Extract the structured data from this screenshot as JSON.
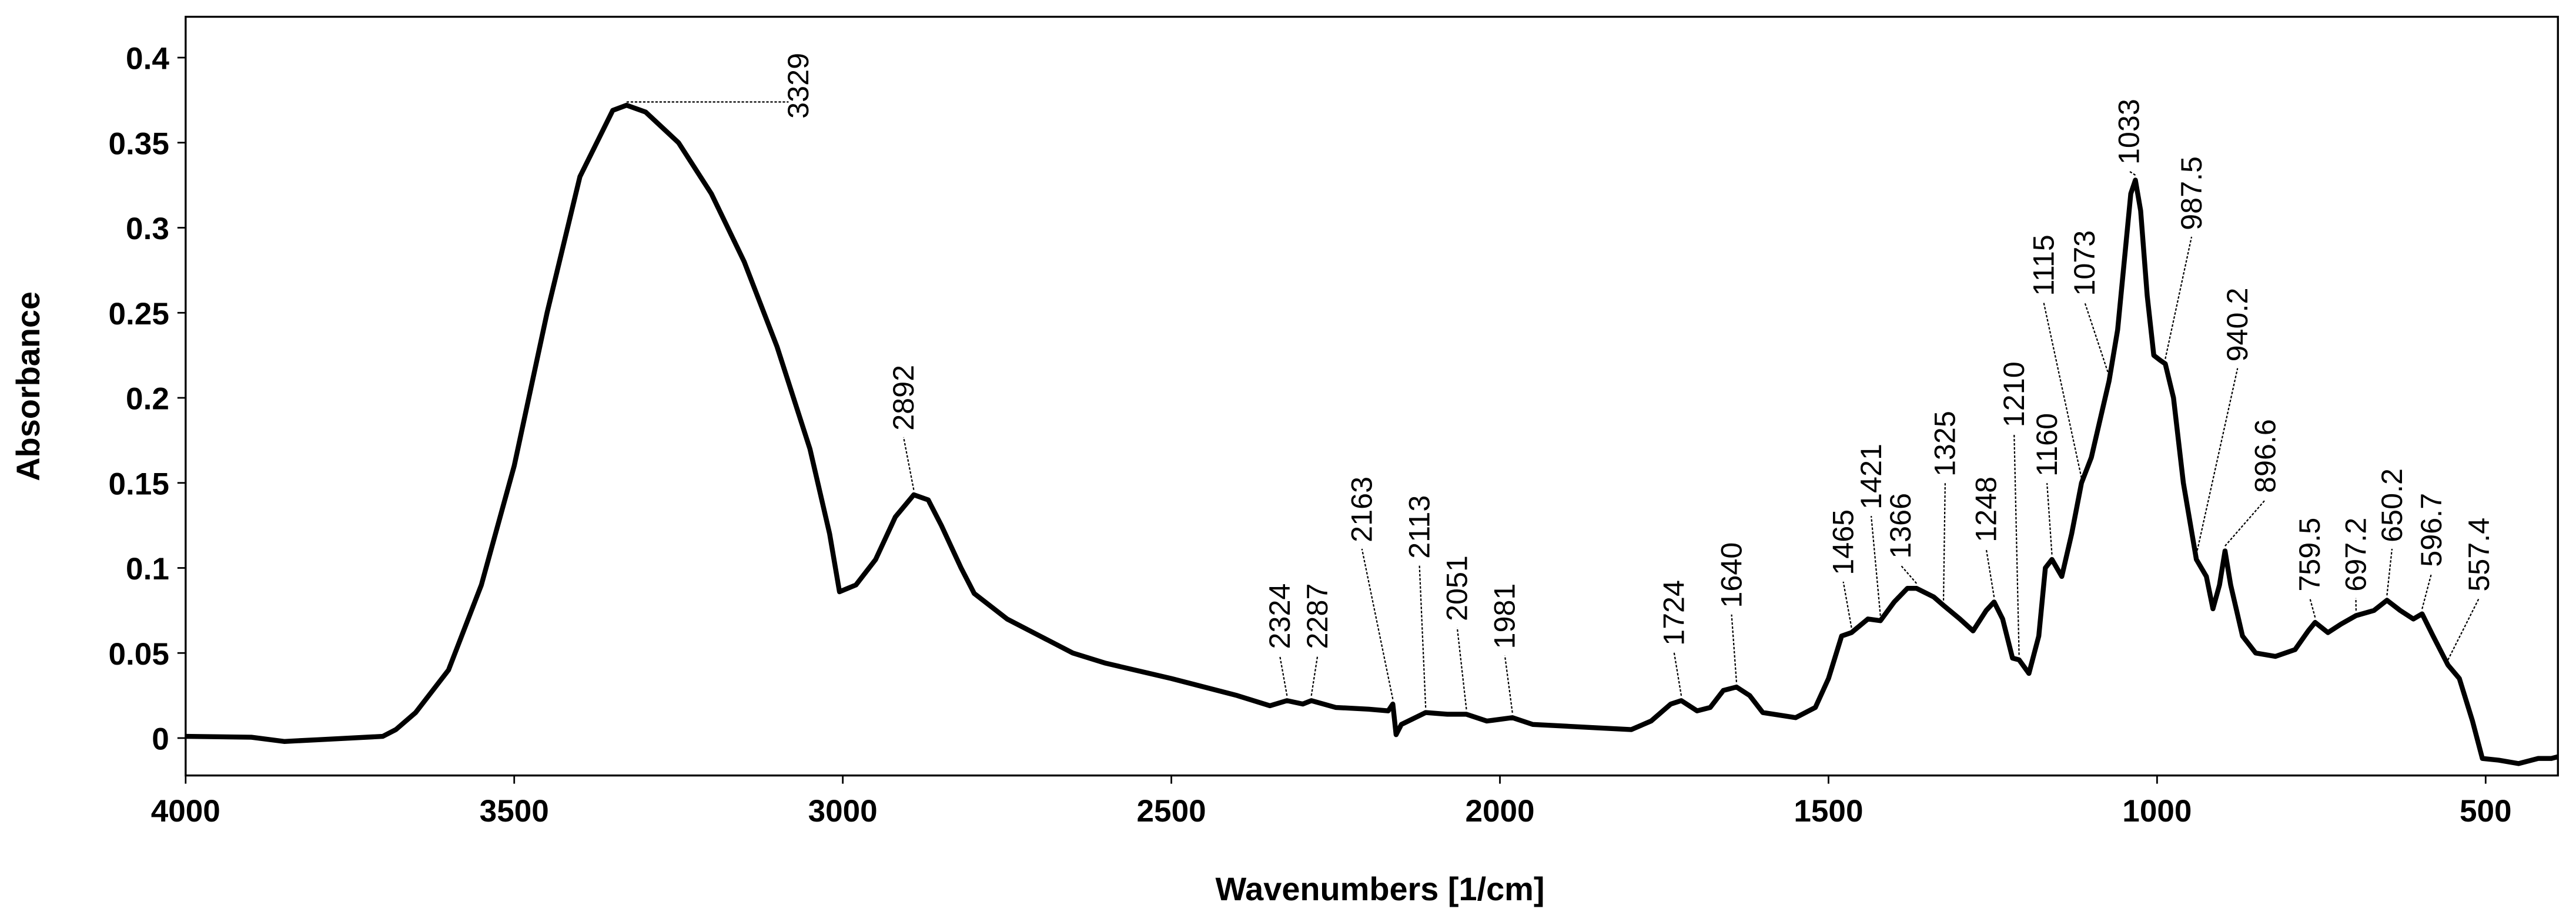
{
  "chart_data": {
    "type": "line",
    "x_label": "Wavenumbers [1/cm]",
    "y_label": "Absorbance",
    "xlim": [
      4000,
      390
    ],
    "ylim": [
      -0.022,
      0.424
    ],
    "xticks": [
      4000,
      3500,
      3000,
      2500,
      2000,
      1500,
      1000,
      500
    ],
    "yticks": [
      0,
      0.05,
      0.1,
      0.15,
      0.2,
      0.25,
      0.3,
      0.35,
      0.4
    ],
    "grid": true,
    "color": "#000000",
    "x": [
      4000,
      3900,
      3850,
      3800,
      3700,
      3680,
      3650,
      3600,
      3550,
      3500,
      3450,
      3400,
      3350,
      3329,
      3300,
      3250,
      3200,
      3150,
      3100,
      3050,
      3020,
      3005,
      2980,
      2950,
      2920,
      2892,
      2870,
      2850,
      2820,
      2800,
      2750,
      2700,
      2650,
      2600,
      2500,
      2400,
      2350,
      2324,
      2300,
      2287,
      2250,
      2200,
      2170,
      2163,
      2158,
      2150,
      2113,
      2080,
      2051,
      2020,
      1981,
      1950,
      1900,
      1850,
      1800,
      1770,
      1740,
      1724,
      1700,
      1680,
      1660,
      1640,
      1620,
      1600,
      1550,
      1520,
      1500,
      1480,
      1465,
      1440,
      1421,
      1400,
      1380,
      1366,
      1340,
      1325,
      1300,
      1280,
      1260,
      1248,
      1235,
      1220,
      1210,
      1195,
      1180,
      1170,
      1160,
      1145,
      1130,
      1115,
      1100,
      1073,
      1060,
      1050,
      1040,
      1033,
      1025,
      1015,
      1005,
      995,
      987.5,
      975,
      960,
      940.2,
      925,
      915,
      905,
      896.6,
      888,
      870,
      850,
      820,
      790,
      770,
      759.5,
      740,
      720,
      697.2,
      670,
      650.2,
      630,
      610,
      596.7,
      580,
      557.4,
      540,
      520,
      505,
      480,
      450,
      420,
      400,
      390
    ],
    "values": [
      0.001,
      0.0005,
      -0.002,
      -0.001,
      0.001,
      0.005,
      0.015,
      0.04,
      0.09,
      0.16,
      0.25,
      0.33,
      0.369,
      0.372,
      0.368,
      0.35,
      0.32,
      0.28,
      0.23,
      0.17,
      0.12,
      0.086,
      0.09,
      0.105,
      0.13,
      0.143,
      0.14,
      0.125,
      0.1,
      0.085,
      0.07,
      0.06,
      0.05,
      0.044,
      0.035,
      0.025,
      0.019,
      0.022,
      0.02,
      0.022,
      0.018,
      0.017,
      0.016,
      0.02,
      0.002,
      0.008,
      0.015,
      0.014,
      0.014,
      0.01,
      0.012,
      0.008,
      0.007,
      0.006,
      0.005,
      0.01,
      0.02,
      0.022,
      0.016,
      0.018,
      0.028,
      0.03,
      0.025,
      0.015,
      0.012,
      0.018,
      0.035,
      0.06,
      0.062,
      0.07,
      0.069,
      0.08,
      0.088,
      0.088,
      0.083,
      0.078,
      0.07,
      0.063,
      0.075,
      0.08,
      0.07,
      0.047,
      0.046,
      0.038,
      0.06,
      0.1,
      0.105,
      0.095,
      0.12,
      0.15,
      0.165,
      0.21,
      0.24,
      0.28,
      0.32,
      0.328,
      0.31,
      0.26,
      0.225,
      0.222,
      0.22,
      0.2,
      0.15,
      0.105,
      0.095,
      0.076,
      0.09,
      0.11,
      0.09,
      0.06,
      0.05,
      0.048,
      0.052,
      0.063,
      0.068,
      0.062,
      0.067,
      0.072,
      0.075,
      0.081,
      0.075,
      0.07,
      0.073,
      0.06,
      0.043,
      0.035,
      0.01,
      -0.012,
      -0.013,
      -0.015,
      -0.012,
      -0.012,
      -0.011
    ],
    "annotations": [
      {
        "x": 3329,
        "y": 0.372
      },
      {
        "x": 2892,
        "y": 0.143
      },
      {
        "x": 2324,
        "y": 0.022
      },
      {
        "x": 2287,
        "y": 0.022
      },
      {
        "x": 2163,
        "y": 0.02
      },
      {
        "x": 2113,
        "y": 0.015
      },
      {
        "x": 2051,
        "y": 0.014
      },
      {
        "x": 1981,
        "y": 0.012
      },
      {
        "x": 1724,
        "y": 0.022
      },
      {
        "x": 1640,
        "y": 0.03
      },
      {
        "x": 1465,
        "y": 0.062
      },
      {
        "x": 1421,
        "y": 0.069
      },
      {
        "x": 1366,
        "y": 0.088
      },
      {
        "x": 1325,
        "y": 0.078
      },
      {
        "x": 1248,
        "y": 0.08
      },
      {
        "x": 1210,
        "y": 0.046
      },
      {
        "x": 1160,
        "y": 0.105
      },
      {
        "x": 1115,
        "y": 0.15
      },
      {
        "x": 1073,
        "y": 0.21
      },
      {
        "x": 1033,
        "y": 0.328
      },
      {
        "x": 987.5,
        "y": 0.22
      },
      {
        "x": 940.2,
        "y": 0.105
      },
      {
        "x": 896.6,
        "y": 0.11
      },
      {
        "x": 759.5,
        "y": 0.068
      },
      {
        "x": 697.2,
        "y": 0.072
      },
      {
        "x": 650.2,
        "y": 0.081
      },
      {
        "x": 596.7,
        "y": 0.073
      },
      {
        "x": 557.4,
        "y": 0.043
      }
    ]
  }
}
